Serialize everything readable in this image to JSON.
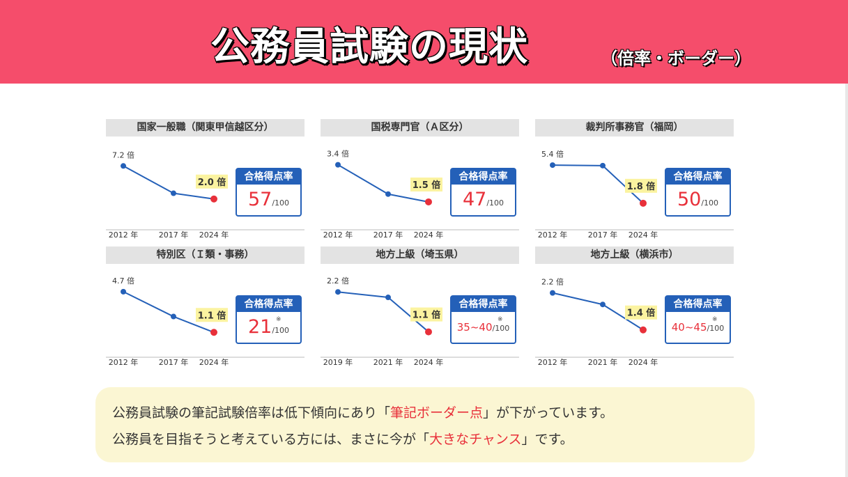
{
  "header": {
    "title": "公務員試験の現状",
    "subtitle": "（倍率・ボーダー）"
  },
  "box_label": "合格得点率",
  "chart_data": [
    {
      "type": "line",
      "title": "国家一般職（関東甲信越区分）",
      "x": [
        "2012 年",
        "2017 年",
        "2024 年"
      ],
      "values": [
        7.2,
        2.9,
        2.0
      ],
      "labels": [
        "7.2 倍",
        "",
        "2.0 倍"
      ],
      "ylim": [
        0,
        8
      ],
      "score": "57",
      "score_unit": "/100",
      "note": ""
    },
    {
      "type": "line",
      "title": "国税専門官（Ａ区分）",
      "x": [
        "2012 年",
        "2017 年",
        "2024 年"
      ],
      "values": [
        3.4,
        1.9,
        1.5
      ],
      "labels": [
        "3.4 倍",
        "",
        "1.5 倍"
      ],
      "ylim": [
        1.0,
        3.6
      ],
      "score": "47",
      "score_unit": "/100",
      "note": ""
    },
    {
      "type": "line",
      "title": "裁判所事務官（福岡）",
      "x": [
        "2012 年",
        "2017 年",
        "2024 年"
      ],
      "values": [
        5.4,
        5.35,
        1.8
      ],
      "labels": [
        "5.4 倍",
        "",
        "1.8 倍"
      ],
      "ylim": [
        1.0,
        5.8
      ],
      "score": "50",
      "score_unit": "/100",
      "note": ""
    },
    {
      "type": "line",
      "title": "特別区（Ｉ類・事務）",
      "x": [
        "2012 年",
        "2017 年",
        "2024 年"
      ],
      "values": [
        4.7,
        2.5,
        1.1
      ],
      "labels": [
        "4.7 倍",
        "",
        "1.1 倍"
      ],
      "ylim": [
        0.5,
        5.0
      ],
      "score": "21",
      "score_unit": "/100",
      "note": "※"
    },
    {
      "type": "line",
      "title": "地方上級（埼玉県）",
      "x": [
        "2019 年",
        "2021 年",
        "2024 年"
      ],
      "values": [
        2.2,
        2.05,
        1.1
      ],
      "labels": [
        "2.2 倍",
        "",
        "1.1 倍"
      ],
      "ylim": [
        0.9,
        2.3
      ],
      "score": "35~40",
      "score_unit": "/100",
      "note": "※"
    },
    {
      "type": "line",
      "title": "地方上級（横浜市）",
      "x": [
        "2012 年",
        "2021 年",
        "2024 年"
      ],
      "values": [
        2.2,
        1.95,
        1.4
      ],
      "labels": [
        "2.2 倍",
        "",
        "1.4 倍"
      ],
      "ylim": [
        1.2,
        2.3
      ],
      "score": "40~45",
      "score_unit": "/100",
      "note": "※"
    }
  ],
  "callout": {
    "line1_pre": "公務員試験の筆記試験倍率は低下傾向にあり「",
    "line1_hl": "筆記ボーダー点",
    "line1_post": "」が下がっています。",
    "line2_pre": "公務員を目指そうと考えている方には、まさに今が「",
    "line2_hl": "大きなチャンス",
    "line2_post": "」です。"
  },
  "colors": {
    "header_bg": "#f54d6b",
    "line": "#2460b8",
    "last_point": "#e8303a",
    "badge_bg": "#fbf3a0",
    "callout_bg": "#fbf6d3"
  }
}
